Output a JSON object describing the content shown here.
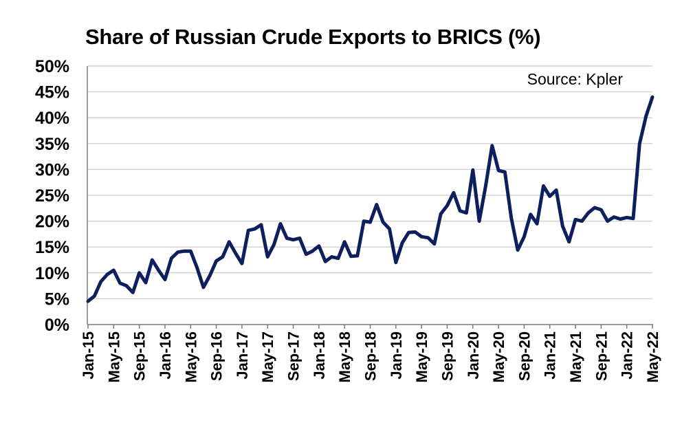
{
  "chart_data": {
    "type": "line",
    "title": "Share of Russian Crude Exports to BRICS (%)",
    "source": "Source: Kpler",
    "xlabel": "",
    "ylabel": "",
    "ylim": [
      0,
      50
    ],
    "y_ticks": [
      "0%",
      "5%",
      "10%",
      "15%",
      "20%",
      "25%",
      "30%",
      "35%",
      "40%",
      "45%",
      "50%"
    ],
    "x_tick_labels": [
      "Jan-15",
      "May-15",
      "Sep-15",
      "Jan-16",
      "May-16",
      "Sep-16",
      "Jan-17",
      "May-17",
      "Sep-17",
      "Jan-18",
      "May-18",
      "Sep-18",
      "Jan-19",
      "May-19",
      "Sep-19",
      "Jan-20",
      "May-20",
      "Sep-20",
      "Jan-21",
      "May-21",
      "Sep-21",
      "Jan-22",
      "May-22"
    ],
    "grid": true,
    "line_color": "#0d1f5c",
    "series": [
      {
        "values": [
          4.5,
          5.5,
          8.3,
          9.7,
          10.5,
          8.0,
          7.5,
          6.2,
          10.0,
          8.1,
          12.5,
          10.5,
          8.7,
          12.8,
          14.0,
          14.2,
          14.2,
          11.0,
          7.2,
          9.5,
          12.3,
          13.1,
          16.0,
          13.8,
          11.8,
          18.2,
          18.5,
          19.3,
          13.1,
          15.5,
          19.5,
          16.7,
          16.4,
          16.7,
          13.6,
          14.2,
          15.2,
          12.2,
          13.1,
          12.8,
          16.0,
          13.2,
          13.3,
          20.0,
          19.8,
          23.2,
          19.8,
          18.5,
          12.0,
          15.8,
          17.8,
          17.9,
          17.0,
          16.8,
          15.6,
          21.4,
          23.0,
          25.5,
          22.0,
          21.6,
          29.9,
          20.0,
          26.8,
          34.6,
          29.8,
          29.5,
          20.5,
          14.4,
          17.0,
          21.3,
          19.5,
          26.8,
          24.8,
          26.0,
          19.0,
          16.0,
          20.3,
          20.0,
          21.6,
          22.6,
          22.2,
          20.0,
          20.8,
          20.4,
          20.7,
          20.5,
          35.0,
          40.3,
          44.0
        ]
      }
    ]
  }
}
